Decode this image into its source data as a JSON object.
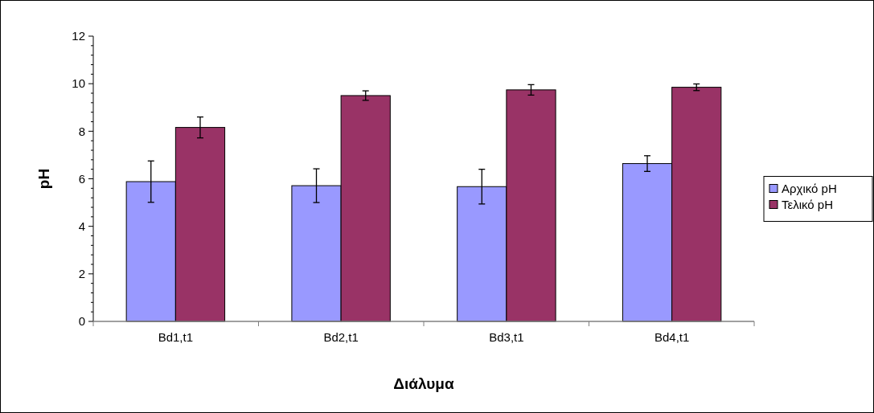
{
  "chart_data": {
    "type": "bar",
    "xlabel": "Διάλυμα",
    "ylabel": "pH",
    "categories": [
      "Bd1,t1",
      "Bd2,t1",
      "Bd3,t1",
      "Bd4,t1"
    ],
    "series": [
      {
        "name": "Αρχικό pH",
        "color": "#9999ff",
        "values": [
          5.88,
          5.71,
          5.67,
          6.64
        ],
        "errors": [
          0.87,
          0.71,
          0.73,
          0.33
        ]
      },
      {
        "name": "Τελικό pH",
        "color": "#993366",
        "values": [
          8.16,
          9.5,
          9.74,
          9.85
        ],
        "errors": [
          0.44,
          0.2,
          0.22,
          0.14
        ]
      }
    ],
    "ylim": [
      0,
      12
    ],
    "yticks": [
      0,
      2,
      4,
      6,
      8,
      10,
      12
    ],
    "grid": false,
    "legend": "right"
  }
}
